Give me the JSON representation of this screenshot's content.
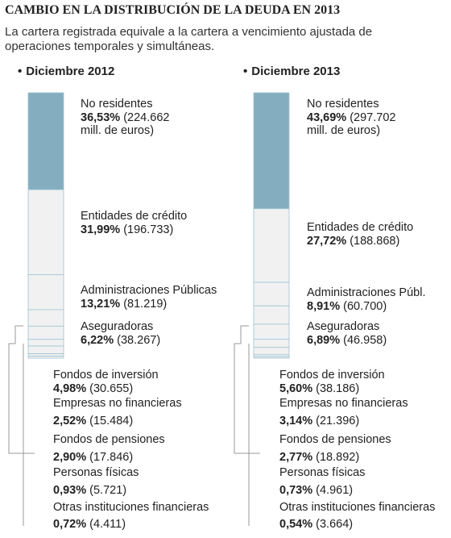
{
  "title": "CAMBIO EN LA DISTRIBUCIÓN DE LA DEUDA EN 2013",
  "subtitle": "La cartera registrada equivale a la cartera a vencimiento ajustada de operaciones temporales y simultáneas.",
  "colors": {
    "highlight": "#84aec0",
    "segment": "#f1f1f1",
    "border": "#9ec3d4",
    "bracket": "#999999"
  },
  "chart_data": [
    {
      "type": "bar",
      "title": "Diciembre 2012",
      "categories": [
        "No residentes",
        "Entidades de crédito",
        "Administraciones Públicas",
        "Aseguradoras",
        "Fondos de inversión",
        "Empresas no financieras",
        "Fondos de pensiones",
        "Personas físicas",
        "Otras instituciones financieras"
      ],
      "values_pct": [
        36.53,
        31.99,
        13.21,
        6.22,
        4.98,
        2.52,
        2.9,
        0.93,
        0.72
      ],
      "labels": [
        {
          "name": "No residentes",
          "pct": "36,53%",
          "amount": "(224.662",
          "amount2": "mill. de euros)"
        },
        {
          "name": "Entidades de crédito",
          "pct": "31,99%",
          "amount": "(196.733)"
        },
        {
          "name": "Administraciones Públicas",
          "pct": "13,21%",
          "amount": "(81.219)"
        },
        {
          "name": "Aseguradoras",
          "pct": "6,22%",
          "amount": "(38.267)"
        },
        {
          "name": "Fondos de inversión",
          "pct": "4,98%",
          "amount": "(30.655)"
        },
        {
          "name": "Empresas no financieras",
          "pct": "2,52%",
          "amount": "(15.484)"
        },
        {
          "name": "Fondos de pensiones",
          "pct": "2,90%",
          "amount": "(17.846)"
        },
        {
          "name": "Personas físicas",
          "pct": "0,93%",
          "amount": "(5.721)"
        },
        {
          "name": "Otras instituciones financieras",
          "pct": "0,72%",
          "amount": "(4.411)"
        }
      ]
    },
    {
      "type": "bar",
      "title": "Diciembre 2013",
      "categories": [
        "No residentes",
        "Entidades de crédito",
        "Administraciones Públ.",
        "Aseguradoras",
        "Fondos de inversión",
        "Empresas no financieras",
        "Fondos de pensiones",
        "Personas físicas",
        "Otras instituciones financieras"
      ],
      "values_pct": [
        43.69,
        27.72,
        8.91,
        6.89,
        5.6,
        3.14,
        2.77,
        0.73,
        0.54
      ],
      "labels": [
        {
          "name": "No residentes",
          "pct": "43,69%",
          "amount": "(297.702",
          "amount2": "mill. de euros)"
        },
        {
          "name": "Entidades de crédito",
          "pct": "27,72%",
          "amount": "(188.868)"
        },
        {
          "name": "Administraciones Públ.",
          "pct": "8,91%",
          "amount": "(60.700)"
        },
        {
          "name": "Aseguradoras",
          "pct": "6,89%",
          "amount": "(46.958)"
        },
        {
          "name": "Fondos de inversión",
          "pct": "5,60%",
          "amount": "(38.186)"
        },
        {
          "name": "Empresas no financieras",
          "pct": "3,14%",
          "amount": "(21.396)"
        },
        {
          "name": "Fondos de pensiones",
          "pct": "2,77%",
          "amount": "(18.892)"
        },
        {
          "name": "Personas físicas",
          "pct": "0,73%",
          "amount": "(4.961)"
        },
        {
          "name": "Otras instituciones financieras",
          "pct": "0,54%",
          "amount": "(3.664)"
        }
      ]
    }
  ]
}
